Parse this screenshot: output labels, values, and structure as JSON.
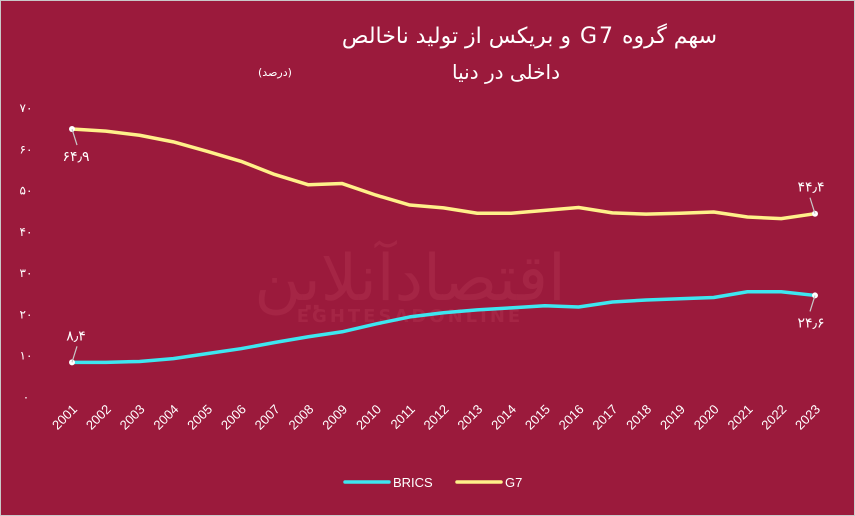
{
  "chart_data": {
    "type": "line",
    "title": "سهم گروه G7 و بریکس از تولید ناخالص",
    "subtitle": "داخلی در دنیا",
    "unit_note": "(درصد)",
    "x": [
      "2001",
      "2002",
      "2003",
      "2004",
      "2005",
      "2006",
      "2007",
      "2008",
      "2009",
      "2010",
      "2011",
      "2012",
      "2013",
      "2014",
      "2015",
      "2016",
      "2017",
      "2018",
      "2019",
      "2020",
      "2021",
      "2022",
      "2023"
    ],
    "yticks": [
      "۰",
      "۱۰",
      "۲۰",
      "۳۰",
      "۴۰",
      "۵۰",
      "۶۰",
      "۷۰"
    ],
    "ylim": [
      0,
      70
    ],
    "series": [
      {
        "name": "BRICS",
        "color": "#3ee6f0",
        "values": [
          8.4,
          8.4,
          8.6,
          9.3,
          10.5,
          11.7,
          13.2,
          14.6,
          15.8,
          17.7,
          19.4,
          20.4,
          21.1,
          21.6,
          22.1,
          21.8,
          23.0,
          23.5,
          23.8,
          24.1,
          25.5,
          25.5,
          24.6
        ]
      },
      {
        "name": "G7",
        "color": "#fff08a",
        "values": [
          64.9,
          64.4,
          63.4,
          61.8,
          59.5,
          57.1,
          53.9,
          51.4,
          51.7,
          48.9,
          46.5,
          45.8,
          44.5,
          44.5,
          45.2,
          45.9,
          44.6,
          44.3,
          44.5,
          44.8,
          43.6,
          43.2,
          44.4
        ]
      }
    ],
    "annotations": [
      {
        "text": "۶۴٫۹",
        "series": "G7",
        "index": 0
      },
      {
        "text": "۸٫۴",
        "series": "BRICS",
        "index": 0
      },
      {
        "text": "۴۴٫۴",
        "series": "G7",
        "index": 22
      },
      {
        "text": "۲۴٫۶",
        "series": "BRICS",
        "index": 22
      }
    ],
    "legend": {
      "position": "bottom",
      "items": [
        "BRICS",
        "G7"
      ]
    },
    "grid": false,
    "watermark": {
      "text_fa": "اقتصادآنلاین",
      "text_en": "EGHTESADONLINE"
    }
  }
}
